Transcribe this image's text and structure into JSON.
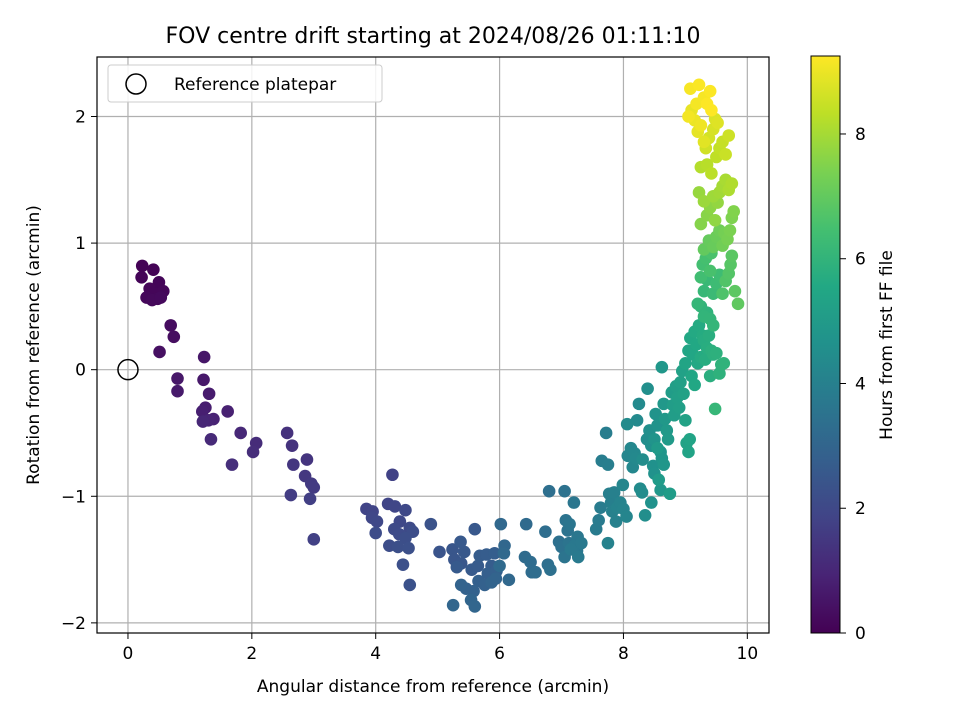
{
  "chart_data": {
    "type": "scatter",
    "title": "FOV centre drift starting at 2024/08/26 01:11:10",
    "xlabel": "Angular distance from reference (arcmin)",
    "ylabel": "Rotation from reference (arcmin)",
    "xlim": [
      -0.5,
      10.35
    ],
    "ylim": [
      -2.08,
      2.47
    ],
    "xticks": [
      0,
      2,
      4,
      6,
      8,
      10
    ],
    "yticks": [
      -2,
      -1,
      0,
      1,
      2
    ],
    "grid": true,
    "legend": {
      "position": "top-left",
      "entries": [
        "Reference platepar"
      ]
    },
    "reference_point": {
      "x": 0,
      "y": 0,
      "label": "Reference platepar"
    },
    "colorbar": {
      "label": "Hours from first FF file",
      "min": 0,
      "max": 9.25,
      "ticks": [
        0,
        2,
        4,
        6,
        8
      ],
      "colormap": "viridis"
    },
    "points": [
      [
        0.23,
        0.82,
        0.05
      ],
      [
        0.41,
        0.79,
        0.07
      ],
      [
        0.22,
        0.73,
        0.08
      ],
      [
        0.5,
        0.69,
        0.1
      ],
      [
        0.35,
        0.64,
        0.12
      ],
      [
        0.44,
        0.6,
        0.14
      ],
      [
        0.57,
        0.62,
        0.15
      ],
      [
        0.3,
        0.57,
        0.17
      ],
      [
        0.48,
        0.56,
        0.18
      ],
      [
        0.39,
        0.55,
        0.2
      ],
      [
        0.53,
        0.57,
        0.22
      ],
      [
        0.69,
        0.35,
        0.3
      ],
      [
        0.74,
        0.26,
        0.35
      ],
      [
        0.51,
        0.14,
        0.4
      ],
      [
        1.23,
        0.1,
        0.55
      ],
      [
        0.8,
        -0.07,
        0.6
      ],
      [
        1.22,
        -0.08,
        0.62
      ],
      [
        0.8,
        -0.17,
        0.65
      ],
      [
        1.31,
        -0.19,
        0.7
      ],
      [
        1.25,
        -0.3,
        0.75
      ],
      [
        1.2,
        -0.33,
        0.8
      ],
      [
        1.61,
        -0.33,
        0.85
      ],
      [
        1.38,
        -0.39,
        0.9
      ],
      [
        1.3,
        -0.4,
        0.95
      ],
      [
        1.21,
        -0.41,
        1.0
      ],
      [
        1.82,
        -0.5,
        1.05
      ],
      [
        1.34,
        -0.55,
        1.1
      ],
      [
        2.07,
        -0.58,
        1.15
      ],
      [
        2.02,
        -0.65,
        1.2
      ],
      [
        1.68,
        -0.75,
        1.25
      ],
      [
        2.57,
        -0.5,
        1.3
      ],
      [
        2.65,
        -0.6,
        1.35
      ],
      [
        2.89,
        -0.71,
        1.4
      ],
      [
        2.67,
        -0.75,
        1.45
      ],
      [
        2.86,
        -0.84,
        1.5
      ],
      [
        2.96,
        -0.9,
        1.55
      ],
      [
        3.0,
        -0.93,
        1.6
      ],
      [
        2.63,
        -0.99,
        1.65
      ],
      [
        2.94,
        -1.02,
        1.7
      ],
      [
        3.0,
        -1.34,
        1.75
      ],
      [
        4.27,
        -0.83,
        1.8
      ],
      [
        3.85,
        -1.1,
        1.85
      ],
      [
        3.95,
        -1.12,
        1.87
      ],
      [
        4.2,
        -1.06,
        1.9
      ],
      [
        4.31,
        -1.08,
        1.92
      ],
      [
        3.94,
        -1.17,
        1.95
      ],
      [
        4.02,
        -1.2,
        1.97
      ],
      [
        4.39,
        -1.2,
        2.0
      ],
      [
        4.48,
        -1.11,
        2.02
      ],
      [
        4.55,
        -1.25,
        2.05
      ],
      [
        4.3,
        -1.26,
        2.07
      ],
      [
        4.38,
        -1.3,
        2.1
      ],
      [
        4.0,
        -1.29,
        2.12
      ],
      [
        4.6,
        -1.28,
        2.15
      ],
      [
        4.22,
        -1.39,
        2.17
      ],
      [
        4.48,
        -1.33,
        2.2
      ],
      [
        4.36,
        -1.4,
        2.22
      ],
      [
        4.53,
        -1.41,
        2.25
      ],
      [
        4.44,
        -1.54,
        2.27
      ],
      [
        4.55,
        -1.7,
        2.3
      ],
      [
        4.89,
        -1.22,
        2.35
      ],
      [
        5.03,
        -1.44,
        2.4
      ],
      [
        5.24,
        -1.42,
        2.45
      ],
      [
        5.27,
        -1.5,
        2.47
      ],
      [
        5.38,
        -1.53,
        2.5
      ],
      [
        5.43,
        -1.44,
        2.52
      ],
      [
        5.6,
        -1.26,
        2.55
      ],
      [
        5.37,
        -1.36,
        2.57
      ],
      [
        5.31,
        -1.56,
        2.6
      ],
      [
        5.55,
        -1.58,
        2.62
      ],
      [
        5.65,
        -1.55,
        2.65
      ],
      [
        5.68,
        -1.47,
        2.67
      ],
      [
        5.79,
        -1.46,
        2.7
      ],
      [
        5.87,
        -1.55,
        2.72
      ],
      [
        5.92,
        -1.45,
        2.75
      ],
      [
        5.81,
        -1.61,
        2.77
      ],
      [
        5.95,
        -1.59,
        2.8
      ],
      [
        5.66,
        -1.67,
        2.82
      ],
      [
        5.76,
        -1.7,
        2.85
      ],
      [
        5.46,
        -1.73,
        2.87
      ],
      [
        5.58,
        -1.75,
        2.9
      ],
      [
        5.38,
        -1.7,
        2.92
      ],
      [
        5.87,
        -1.68,
        2.95
      ],
      [
        5.94,
        -1.65,
        2.97
      ],
      [
        5.54,
        -1.82,
        3.0
      ],
      [
        5.6,
        -1.87,
        3.02
      ],
      [
        5.25,
        -1.86,
        3.05
      ],
      [
        6.08,
        -1.39,
        3.07
      ],
      [
        6.02,
        -1.22,
        3.1
      ],
      [
        6.15,
        -1.66,
        3.12
      ],
      [
        6.07,
        -1.45,
        3.15
      ],
      [
        6.0,
        -1.55,
        3.17
      ],
      [
        6.43,
        -1.22,
        3.2
      ],
      [
        6.41,
        -1.48,
        3.22
      ],
      [
        6.5,
        -1.52,
        3.25
      ],
      [
        6.52,
        -1.6,
        3.27
      ],
      [
        6.58,
        -1.6,
        3.3
      ],
      [
        6.74,
        -1.28,
        3.32
      ],
      [
        6.8,
        -0.96,
        3.35
      ],
      [
        6.78,
        -1.54,
        3.37
      ],
      [
        6.82,
        -1.58,
        3.4
      ],
      [
        6.96,
        -1.36,
        3.42
      ],
      [
        7.0,
        -1.4,
        3.45
      ],
      [
        7.05,
        -0.96,
        3.47
      ],
      [
        7.07,
        -1.19,
        3.5
      ],
      [
        7.1,
        -1.27,
        3.52
      ],
      [
        7.12,
        -1.37,
        3.55
      ],
      [
        7.05,
        -1.48,
        3.57
      ],
      [
        7.13,
        -1.22,
        3.6
      ],
      [
        7.2,
        -1.05,
        3.62
      ],
      [
        7.26,
        -1.32,
        3.65
      ],
      [
        7.25,
        -1.43,
        3.67
      ],
      [
        7.21,
        -1.39,
        3.7
      ],
      [
        7.32,
        -1.37,
        3.72
      ],
      [
        7.15,
        -1.42,
        3.75
      ],
      [
        7.27,
        -1.48,
        3.77
      ],
      [
        7.56,
        -1.26,
        3.8
      ],
      [
        7.6,
        -1.19,
        3.82
      ],
      [
        7.63,
        -1.09,
        3.85
      ],
      [
        7.65,
        -0.72,
        3.87
      ],
      [
        7.72,
        -0.5,
        3.9
      ],
      [
        7.75,
        -0.75,
        3.92
      ],
      [
        7.77,
        -0.98,
        3.95
      ],
      [
        7.8,
        -1.05,
        3.97
      ],
      [
        7.85,
        -0.97,
        4.0
      ],
      [
        7.82,
        -1.12,
        4.02
      ],
      [
        7.88,
        -1.2,
        4.05
      ],
      [
        7.75,
        -1.37,
        4.07
      ],
      [
        7.9,
        -1.09,
        4.1
      ],
      [
        7.95,
        -1.05,
        4.12
      ],
      [
        8.0,
        -1.1,
        4.15
      ],
      [
        8.05,
        -1.16,
        4.17
      ],
      [
        7.99,
        -0.91,
        4.2
      ],
      [
        8.07,
        -0.68,
        4.22
      ],
      [
        8.12,
        -0.62,
        4.25
      ],
      [
        8.15,
        -0.77,
        4.27
      ],
      [
        8.18,
        -0.66,
        4.3
      ],
      [
        8.2,
        -0.7,
        4.32
      ],
      [
        8.22,
        -0.4,
        4.35
      ],
      [
        8.25,
        -0.27,
        4.37
      ],
      [
        8.06,
        -0.43,
        4.4
      ],
      [
        8.27,
        -0.94,
        4.42
      ],
      [
        8.3,
        -0.97,
        4.45
      ],
      [
        8.31,
        -0.71,
        4.47
      ],
      [
        8.35,
        -1.15,
        4.5
      ],
      [
        8.38,
        -0.55,
        4.52
      ],
      [
        8.39,
        -0.15,
        4.55
      ],
      [
        8.42,
        -0.48,
        4.57
      ],
      [
        8.45,
        -0.6,
        4.6
      ],
      [
        8.48,
        -0.76,
        4.62
      ],
      [
        8.5,
        -0.82,
        4.65
      ],
      [
        8.45,
        -1.05,
        4.67
      ],
      [
        8.52,
        -0.35,
        4.7
      ],
      [
        8.55,
        -0.44,
        4.72
      ],
      [
        8.5,
        -0.55,
        4.75
      ],
      [
        8.6,
        -0.65,
        4.77
      ],
      [
        8.62,
        -0.7,
        4.8
      ],
      [
        8.65,
        -0.75,
        4.82
      ],
      [
        8.6,
        -0.95,
        4.85
      ],
      [
        8.62,
        0.02,
        4.87
      ],
      [
        8.65,
        -0.27,
        4.9
      ],
      [
        8.67,
        -0.39,
        4.92
      ],
      [
        8.7,
        -0.48,
        4.95
      ],
      [
        8.72,
        -0.55,
        4.97
      ],
      [
        8.55,
        -0.62,
        5.0
      ],
      [
        8.57,
        -0.87,
        5.02
      ],
      [
        8.75,
        -0.98,
        5.05
      ],
      [
        8.78,
        -0.18,
        5.07
      ],
      [
        8.8,
        -0.28,
        5.1
      ],
      [
        8.82,
        -0.36,
        5.12
      ],
      [
        8.85,
        -0.13,
        5.15
      ],
      [
        8.87,
        -0.22,
        5.17
      ],
      [
        8.9,
        -0.3,
        5.2
      ],
      [
        8.92,
        -0.1,
        5.22
      ],
      [
        8.95,
        -0.01,
        5.25
      ],
      [
        8.97,
        -0.19,
        5.27
      ],
      [
        9.0,
        -0.4,
        5.3
      ],
      [
        9.02,
        -0.58,
        5.32
      ],
      [
        9.05,
        -0.65,
        5.35
      ],
      [
        9.07,
        -0.55,
        5.37
      ],
      [
        9.0,
        0.05,
        5.4
      ],
      [
        9.05,
        0.15,
        5.42
      ],
      [
        9.1,
        -0.05,
        5.45
      ],
      [
        9.12,
        0.12,
        5.47
      ],
      [
        9.15,
        -0.12,
        5.5
      ],
      [
        9.08,
        0.25,
        5.52
      ],
      [
        9.18,
        0.2,
        5.55
      ],
      [
        9.2,
        0.05,
        5.57
      ],
      [
        9.15,
        0.3,
        5.6
      ],
      [
        9.22,
        0.35,
        5.62
      ],
      [
        9.25,
        0.1,
        5.65
      ],
      [
        9.28,
        0.27,
        5.67
      ],
      [
        9.3,
        0.23,
        5.7
      ],
      [
        9.32,
        0.08,
        5.72
      ],
      [
        9.35,
        0.17,
        5.75
      ],
      [
        9.38,
        0.27,
        5.77
      ],
      [
        9.4,
        -0.05,
        5.8
      ],
      [
        9.42,
        0.15,
        5.82
      ],
      [
        9.45,
        0.12,
        5.85
      ],
      [
        9.5,
        0.13,
        5.87
      ],
      [
        9.55,
        -0.03,
        5.9
      ],
      [
        9.58,
        0.04,
        5.92
      ],
      [
        9.62,
        0.05,
        5.95
      ],
      [
        9.35,
        0.45,
        5.97
      ],
      [
        9.25,
        0.5,
        6.0
      ],
      [
        9.3,
        0.42,
        6.02
      ],
      [
        9.4,
        0.4,
        6.05
      ],
      [
        9.45,
        0.35,
        6.07
      ],
      [
        9.2,
        0.52,
        6.1
      ],
      [
        9.48,
        -0.31,
        6.12
      ],
      [
        9.3,
        0.62,
        6.15
      ],
      [
        9.35,
        0.71,
        6.2
      ],
      [
        9.45,
        0.6,
        6.25
      ],
      [
        9.5,
        0.68,
        6.3
      ],
      [
        9.55,
        0.75,
        6.35
      ],
      [
        9.25,
        0.73,
        6.4
      ],
      [
        9.28,
        0.83,
        6.45
      ],
      [
        9.33,
        0.88,
        6.5
      ],
      [
        9.4,
        0.78,
        6.55
      ],
      [
        9.42,
        0.92,
        6.6
      ],
      [
        9.6,
        0.6,
        6.65
      ],
      [
        9.65,
        0.7,
        6.7
      ],
      [
        9.7,
        0.76,
        6.75
      ],
      [
        9.73,
        0.83,
        6.8
      ],
      [
        9.75,
        0.9,
        6.85
      ],
      [
        9.8,
        0.62,
        6.9
      ],
      [
        9.85,
        0.52,
        6.95
      ],
      [
        9.3,
        0.95,
        7.0
      ],
      [
        9.38,
        1.02,
        7.05
      ],
      [
        9.45,
        0.97,
        7.1
      ],
      [
        9.5,
        1.05,
        7.15
      ],
      [
        9.55,
        1.1,
        7.2
      ],
      [
        9.6,
        0.98,
        7.25
      ],
      [
        9.63,
        1.08,
        7.3
      ],
      [
        9.68,
        1.03,
        7.35
      ],
      [
        9.72,
        1.1,
        7.4
      ],
      [
        9.75,
        1.2,
        7.45
      ],
      [
        9.78,
        1.25,
        7.5
      ],
      [
        9.25,
        1.15,
        7.55
      ],
      [
        9.35,
        1.22,
        7.6
      ],
      [
        9.4,
        1.28,
        7.65
      ],
      [
        9.48,
        1.18,
        7.7
      ],
      [
        9.52,
        1.32,
        7.75
      ],
      [
        9.22,
        1.4,
        7.8
      ],
      [
        9.3,
        1.33,
        7.85
      ],
      [
        9.45,
        1.37,
        7.9
      ],
      [
        9.55,
        1.4,
        7.95
      ],
      [
        9.6,
        1.45,
        8.0
      ],
      [
        9.65,
        1.5,
        8.05
      ],
      [
        9.7,
        1.42,
        8.1
      ],
      [
        9.75,
        1.47,
        8.15
      ],
      [
        9.25,
        1.6,
        8.2
      ],
      [
        9.35,
        1.62,
        8.25
      ],
      [
        9.42,
        1.55,
        8.3
      ],
      [
        9.5,
        1.68,
        8.35
      ],
      [
        9.55,
        1.75,
        8.4
      ],
      [
        9.6,
        1.8,
        8.45
      ],
      [
        9.65,
        1.7,
        8.5
      ],
      [
        9.7,
        1.85,
        8.55
      ],
      [
        9.33,
        1.75,
        8.6
      ],
      [
        9.38,
        1.83,
        8.65
      ],
      [
        9.45,
        1.9,
        8.7
      ],
      [
        9.48,
        1.98,
        8.75
      ],
      [
        9.52,
        1.95,
        8.8
      ],
      [
        9.3,
        1.8,
        8.85
      ],
      [
        9.2,
        1.88,
        8.9
      ],
      [
        9.1,
        2.05,
        8.95
      ],
      [
        9.15,
        1.97,
        9.0
      ],
      [
        9.25,
        1.93,
        9.05
      ],
      [
        9.05,
        2.0,
        9.1
      ],
      [
        9.18,
        2.1,
        9.12
      ],
      [
        9.3,
        2.15,
        9.15
      ],
      [
        9.08,
        2.22,
        9.17
      ],
      [
        9.22,
        2.25,
        9.2
      ],
      [
        9.4,
        2.2,
        9.22
      ],
      [
        9.35,
        2.1,
        9.24
      ],
      [
        9.42,
        2.05,
        9.25
      ]
    ]
  }
}
